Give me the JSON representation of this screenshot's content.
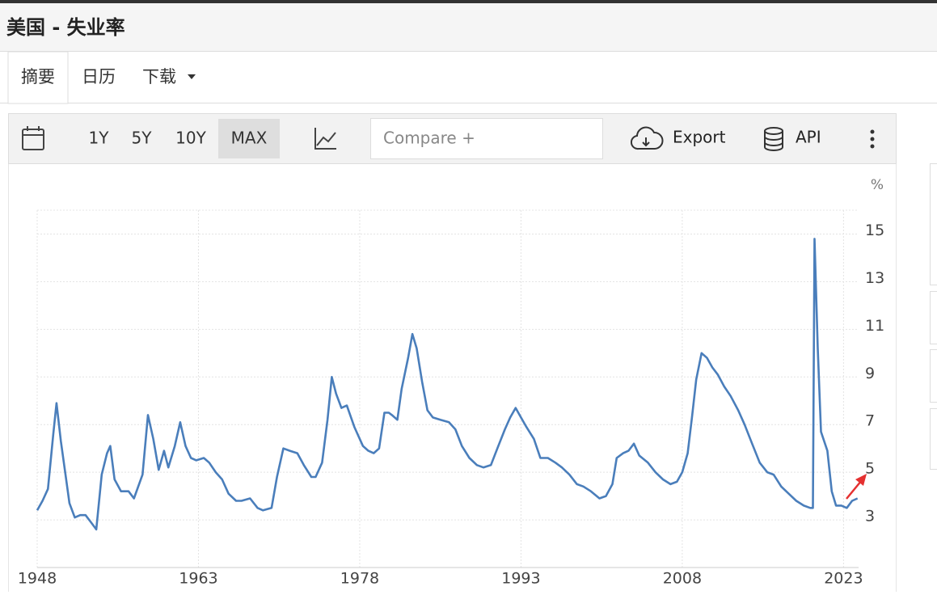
{
  "header": {
    "title": "美国 - 失业率"
  },
  "tabs": [
    "摘要",
    "日历",
    "下载"
  ],
  "toolbar": {
    "ranges": [
      "1Y",
      "5Y",
      "10Y",
      "MAX"
    ],
    "compare": "Compare +",
    "export": "Export",
    "api": "API"
  },
  "chart_data": {
    "type": "line",
    "y_unit": "%",
    "x": [
      1948.0,
      1948.5,
      1949.0,
      1949.5,
      1949.8,
      1950.2,
      1950.6,
      1951.0,
      1951.5,
      1952.0,
      1952.5,
      1953.0,
      1953.5,
      1954.0,
      1954.5,
      1954.8,
      1955.2,
      1955.8,
      1956.5,
      1957.0,
      1957.8,
      1958.3,
      1958.8,
      1959.3,
      1959.8,
      1960.2,
      1960.8,
      1961.3,
      1961.8,
      1962.3,
      1962.8,
      1963.5,
      1964.0,
      1964.6,
      1965.2,
      1965.8,
      1966.5,
      1967.0,
      1967.8,
      1968.5,
      1969.0,
      1969.8,
      1970.3,
      1970.9,
      1971.5,
      1972.2,
      1972.8,
      1973.5,
      1973.9,
      1974.5,
      1975.0,
      1975.4,
      1975.8,
      1976.3,
      1976.8,
      1977.5,
      1978.3,
      1978.8,
      1979.3,
      1979.8,
      1980.3,
      1980.7,
      1981.0,
      1981.5,
      1981.9,
      1982.5,
      1982.9,
      1983.3,
      1983.8,
      1984.3,
      1984.8,
      1985.5,
      1986.3,
      1986.9,
      1987.5,
      1988.2,
      1988.9,
      1989.5,
      1990.2,
      1990.8,
      1991.5,
      1992.0,
      1992.5,
      1993.0,
      1993.5,
      1994.2,
      1994.8,
      1995.5,
      1996.2,
      1996.8,
      1997.5,
      1998.2,
      1998.8,
      1999.5,
      2000.3,
      2000.9,
      2001.5,
      2001.9,
      2002.5,
      2003.0,
      2003.5,
      2004.0,
      2004.8,
      2005.5,
      2006.2,
      2006.9,
      2007.5,
      2008.0,
      2008.5,
      2008.9,
      2009.3,
      2009.8,
      2010.3,
      2010.8,
      2011.3,
      2011.9,
      2012.5,
      2013.2,
      2013.8,
      2014.5,
      2015.2,
      2015.9,
      2016.5,
      2017.2,
      2017.9,
      2018.6,
      2019.3,
      2019.9,
      2020.15,
      2020.3,
      2020.6,
      2020.9,
      2021.5,
      2021.9,
      2022.3,
      2022.8,
      2023.3,
      2023.8,
      2024.3
    ],
    "series": [
      {
        "name": "失业率",
        "color": "#4a7ebb",
        "values": [
          3.4,
          3.8,
          4.3,
          6.6,
          7.9,
          6.3,
          5.0,
          3.7,
          3.1,
          3.2,
          3.2,
          2.9,
          2.6,
          4.9,
          5.8,
          6.1,
          4.7,
          4.2,
          4.2,
          3.9,
          4.9,
          7.4,
          6.4,
          5.1,
          5.9,
          5.2,
          6.1,
          7.1,
          6.1,
          5.6,
          5.5,
          5.6,
          5.4,
          5.0,
          4.7,
          4.1,
          3.8,
          3.8,
          3.9,
          3.5,
          3.4,
          3.5,
          4.8,
          6.0,
          5.9,
          5.8,
          5.3,
          4.8,
          4.8,
          5.4,
          7.2,
          9.0,
          8.3,
          7.7,
          7.8,
          6.9,
          6.1,
          5.9,
          5.8,
          6.0,
          7.5,
          7.5,
          7.4,
          7.2,
          8.5,
          9.8,
          10.8,
          10.2,
          8.8,
          7.6,
          7.3,
          7.2,
          7.1,
          6.8,
          6.1,
          5.6,
          5.3,
          5.2,
          5.3,
          6.0,
          6.8,
          7.3,
          7.7,
          7.3,
          6.9,
          6.4,
          5.6,
          5.6,
          5.4,
          5.2,
          4.9,
          4.5,
          4.4,
          4.2,
          3.9,
          4.0,
          4.5,
          5.6,
          5.8,
          5.9,
          6.2,
          5.7,
          5.4,
          5.0,
          4.7,
          4.5,
          4.6,
          5.0,
          5.8,
          7.3,
          8.9,
          10.0,
          9.8,
          9.4,
          9.1,
          8.6,
          8.2,
          7.6,
          7.0,
          6.2,
          5.4,
          5.0,
          4.9,
          4.4,
          4.1,
          3.8,
          3.6,
          3.5,
          3.5,
          14.8,
          10.2,
          6.7,
          5.9,
          4.2,
          3.6,
          3.6,
          3.5,
          3.8,
          3.9
        ]
      }
    ],
    "xlim": [
      1948,
      2024.4
    ],
    "xticks": [
      1948,
      1963,
      1978,
      1993,
      2008,
      2023
    ],
    "ylim": [
      1,
      16
    ],
    "yticks": [
      3,
      5,
      7,
      9,
      11,
      13,
      15
    ],
    "grid": true
  }
}
